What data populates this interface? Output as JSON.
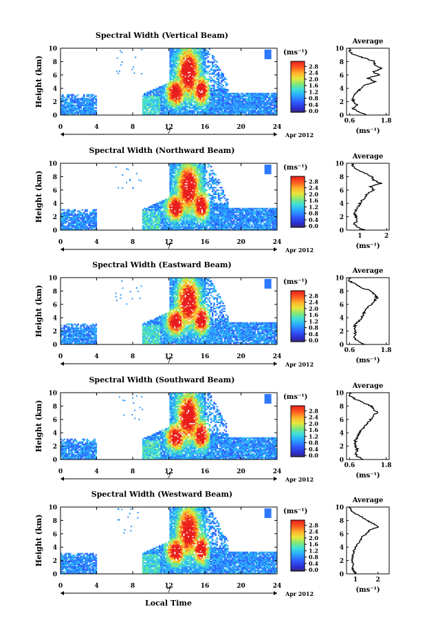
{
  "figure": {
    "xlabel": "Local Time",
    "date_label": "Apr 2012",
    "day_label": "7"
  },
  "chart_data": [
    {
      "type": "heatmap",
      "title": "Spectral Width (Vertical Beam)",
      "ylabel": "Height (km)",
      "xlim": [
        0,
        24
      ],
      "ylim": [
        0,
        10
      ],
      "xticks": [
        0,
        4,
        8,
        12,
        16,
        20,
        24
      ],
      "yticks": [
        0,
        2,
        4,
        6,
        8,
        10
      ],
      "colorbar": {
        "unit": "(ms⁻¹)",
        "ticks": [
          "0.0",
          "0.4",
          "0.8",
          "1.2",
          "1.6",
          "2.0",
          "2.4",
          "2.8"
        ],
        "range": [
          0,
          2.8
        ]
      },
      "average": {
        "title": "Average",
        "xlabel": "(ms⁻¹)",
        "xticks": [
          "0.6",
          "1.8"
        ],
        "xlim": [
          0.5,
          1.9
        ],
        "heights": [
          0,
          0.5,
          1,
          1.5,
          2,
          2.5,
          3,
          3.5,
          4,
          4.5,
          5,
          5.5,
          6,
          6.5,
          7,
          7.5,
          8,
          8.5,
          9,
          9.5,
          10
        ],
        "values": [
          1.15,
          0.9,
          0.7,
          0.85,
          0.72,
          0.7,
          0.72,
          0.85,
          1.0,
          1.1,
          1.45,
          1.2,
          1.55,
          1.35,
          1.7,
          1.4,
          1.45,
          1.1,
          0.75,
          0.6,
          0.6
        ]
      }
    },
    {
      "type": "heatmap",
      "title": "Spectral Width (Northward Beam)",
      "ylabel": "Height (km)",
      "xlim": [
        0,
        24
      ],
      "ylim": [
        0,
        10
      ],
      "xticks": [
        0,
        4,
        8,
        12,
        16,
        20,
        24
      ],
      "yticks": [
        0,
        2,
        4,
        6,
        8,
        10
      ],
      "colorbar": {
        "unit": "(ms⁻¹)",
        "ticks": [
          "0.0",
          "0.4",
          "0.8",
          "1.2",
          "1.6",
          "2.0",
          "2.4",
          "2.8"
        ],
        "range": [
          0,
          2.8
        ]
      },
      "average": {
        "title": "Average",
        "xlabel": "(ms⁻¹)",
        "xticks": [
          "1",
          "2"
        ],
        "xlim": [
          0.5,
          2.1
        ],
        "heights": [
          0,
          0.5,
          1,
          1.5,
          2,
          2.5,
          3,
          3.5,
          4,
          4.5,
          5,
          5.5,
          6,
          6.5,
          7,
          7.5,
          8,
          8.5,
          9,
          9.5,
          10
        ],
        "values": [
          1.2,
          0.85,
          0.8,
          0.9,
          0.85,
          0.8,
          0.85,
          0.95,
          1.0,
          1.1,
          1.2,
          1.3,
          1.5,
          1.4,
          1.8,
          1.5,
          1.45,
          1.2,
          0.9,
          0.75,
          0.7
        ]
      }
    },
    {
      "type": "heatmap",
      "title": "Spectral Width (Eastward Beam)",
      "ylabel": "Height (km)",
      "xlim": [
        0,
        24
      ],
      "ylim": [
        0,
        10
      ],
      "xticks": [
        0,
        4,
        8,
        12,
        16,
        20,
        24
      ],
      "yticks": [
        0,
        2,
        4,
        6,
        8,
        10
      ],
      "colorbar": {
        "unit": "(ms⁻¹)",
        "ticks": [
          "0.0",
          "0.4",
          "0.8",
          "1.2",
          "1.6",
          "2.0",
          "2.4",
          "2.8"
        ],
        "range": [
          0,
          2.8
        ]
      },
      "average": {
        "title": "Average",
        "xlabel": "(ms⁻¹)",
        "xticks": [
          "0.6",
          "1.8"
        ],
        "xlim": [
          0.5,
          1.9
        ],
        "heights": [
          0,
          0.5,
          1,
          1.5,
          2,
          2.5,
          3,
          3.5,
          4,
          4.5,
          5,
          5.5,
          6,
          6.5,
          7,
          7.5,
          8,
          8.5,
          9,
          9.5,
          10
        ],
        "values": [
          1.1,
          0.85,
          0.75,
          0.8,
          0.78,
          0.75,
          0.8,
          0.9,
          1.0,
          1.05,
          1.1,
          1.2,
          1.3,
          1.4,
          1.5,
          1.4,
          1.3,
          1.0,
          0.8,
          0.6,
          0.6
        ]
      }
    },
    {
      "type": "heatmap",
      "title": "Spectral Width (Southward Beam)",
      "ylabel": "Height (km)",
      "xlim": [
        0,
        24
      ],
      "ylim": [
        0,
        10
      ],
      "xticks": [
        0,
        4,
        8,
        12,
        16,
        20,
        24
      ],
      "yticks": [
        0,
        2,
        4,
        6,
        8,
        10
      ],
      "colorbar": {
        "unit": "(ms⁻¹)",
        "ticks": [
          "0.0",
          "0.4",
          "0.8",
          "1.2",
          "1.6",
          "2.0",
          "2.4",
          "2.8"
        ],
        "range": [
          0,
          2.8
        ]
      },
      "average": {
        "title": "Average",
        "xlabel": "(ms⁻¹)",
        "xticks": [
          "0.6",
          "1.8"
        ],
        "xlim": [
          0.5,
          1.9
        ],
        "heights": [
          0,
          0.5,
          1,
          1.5,
          2,
          2.5,
          3,
          3.5,
          4,
          4.5,
          5,
          5.5,
          6,
          6.5,
          7,
          7.5,
          8,
          8.5,
          9,
          9.5,
          10
        ],
        "values": [
          1.05,
          0.85,
          0.8,
          0.85,
          0.8,
          0.78,
          0.8,
          0.85,
          0.95,
          1.0,
          1.1,
          1.2,
          1.3,
          1.35,
          1.5,
          1.4,
          1.3,
          1.05,
          0.8,
          0.6,
          0.6
        ]
      }
    },
    {
      "type": "heatmap",
      "title": "Spectral Width (Westward Beam)",
      "ylabel": "Height (km)",
      "xlim": [
        0,
        24
      ],
      "ylim": [
        0,
        10
      ],
      "xticks": [
        0,
        4,
        8,
        12,
        16,
        20,
        24
      ],
      "yticks": [
        0,
        2,
        4,
        6,
        8,
        10
      ],
      "colorbar": {
        "unit": "(ms⁻¹)",
        "ticks": [
          "0.0",
          "0.4",
          "0.8",
          "1.2",
          "1.6",
          "2.0",
          "2.4",
          "2.8"
        ],
        "range": [
          0,
          2.8
        ]
      },
      "average": {
        "title": "Average",
        "xlabel": "(ms⁻¹)",
        "xticks": [
          "1",
          "2"
        ],
        "xlim": [
          0.6,
          2.5
        ],
        "heights": [
          0,
          0.5,
          1,
          1.5,
          2,
          2.5,
          3,
          3.5,
          4,
          4.5,
          5,
          5.5,
          6,
          6.5,
          7,
          7.5,
          8,
          8.5,
          9,
          9.5,
          10
        ],
        "values": [
          1.05,
          0.9,
          0.85,
          0.9,
          0.85,
          0.85,
          0.9,
          0.95,
          1.0,
          1.1,
          1.2,
          1.3,
          1.5,
          1.6,
          2.0,
          1.8,
          1.5,
          1.3,
          1.0,
          0.8,
          0.75
        ]
      }
    }
  ]
}
